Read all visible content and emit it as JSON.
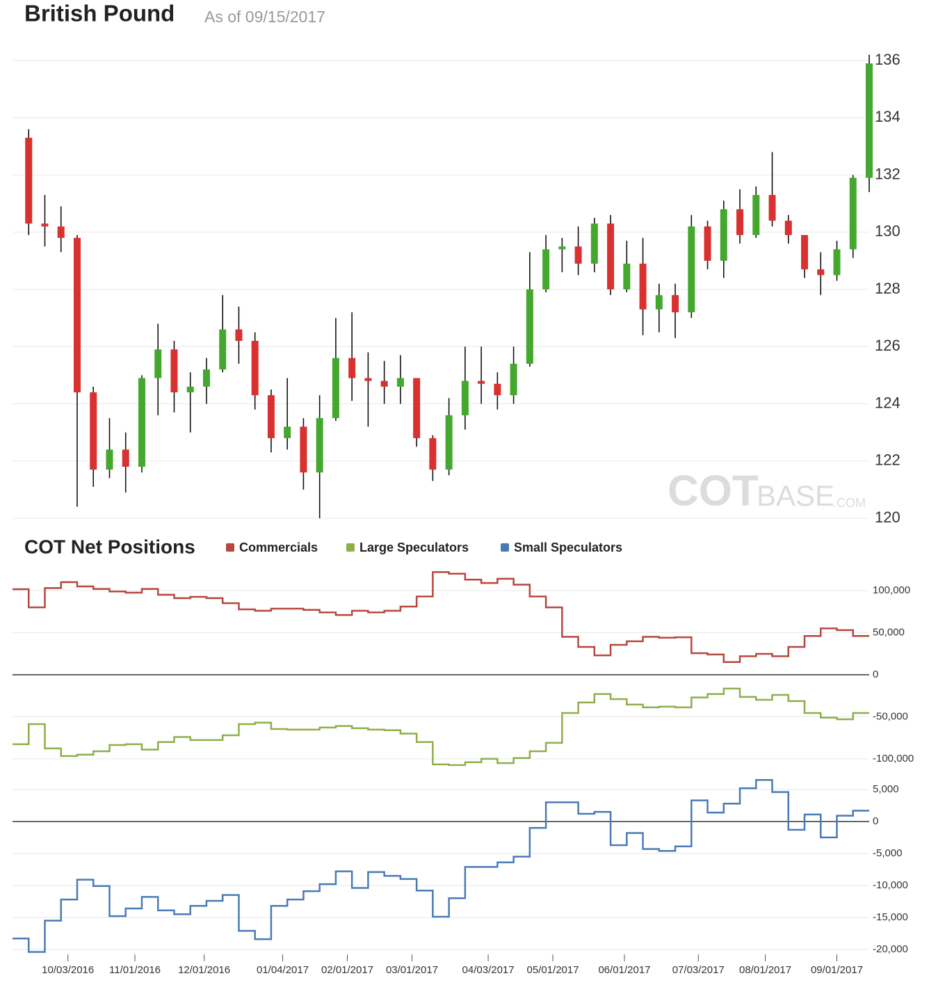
{
  "chart_data": [
    {
      "type": "candlestick",
      "title": "British Pound",
      "subtitle": "As of 09/15/2017",
      "watermark": [
        "COT",
        "BASE",
        ".COM"
      ],
      "x": [
        "09/16/2016",
        "09/23/2016",
        "09/30/2016",
        "10/07/2016",
        "10/14/2016",
        "10/21/2016",
        "10/28/2016",
        "11/04/2016",
        "11/11/2016",
        "11/18/2016",
        "11/25/2016",
        "12/02/2016",
        "12/09/2016",
        "12/16/2016",
        "12/23/2016",
        "12/30/2016",
        "01/06/2017",
        "01/13/2017",
        "01/20/2017",
        "01/27/2017",
        "02/03/2017",
        "02/10/2017",
        "02/17/2017",
        "02/24/2017",
        "03/03/2017",
        "03/10/2017",
        "03/17/2017",
        "03/24/2017",
        "03/31/2017",
        "04/07/2017",
        "04/14/2017",
        "04/21/2017",
        "04/28/2017",
        "05/05/2017",
        "05/12/2017",
        "05/19/2017",
        "05/26/2017",
        "06/02/2017",
        "06/09/2017",
        "06/16/2017",
        "06/23/2017",
        "06/30/2017",
        "07/07/2017",
        "07/14/2017",
        "07/21/2017",
        "07/28/2017",
        "08/04/2017",
        "08/11/2017",
        "08/18/2017",
        "08/25/2017",
        "09/01/2017",
        "09/08/2017",
        "09/15/2017"
      ],
      "open": [
        133.3,
        130.3,
        130.2,
        129.8,
        124.4,
        121.7,
        122.4,
        121.8,
        124.9,
        125.9,
        124.4,
        124.6,
        125.2,
        126.6,
        126.2,
        124.3,
        122.8,
        123.2,
        121.6,
        123.5,
        125.6,
        124.9,
        124.8,
        124.6,
        124.9,
        122.8,
        121.7,
        123.6,
        124.8,
        124.7,
        124.3,
        125.4,
        128.0,
        129.4,
        129.5,
        128.9,
        130.3,
        128.0,
        128.9,
        127.3,
        127.8,
        127.2,
        130.2,
        129.0,
        130.8,
        129.9,
        131.3,
        130.4,
        129.9,
        128.7,
        128.5,
        129.4,
        131.9
      ],
      "high": [
        133.6,
        131.3,
        130.9,
        129.9,
        124.6,
        123.5,
        123.0,
        125.0,
        126.8,
        126.2,
        125.1,
        125.6,
        127.8,
        127.4,
        126.5,
        124.5,
        124.9,
        123.5,
        124.3,
        127.0,
        127.2,
        125.8,
        125.5,
        125.7,
        124.9,
        122.9,
        124.2,
        126.0,
        126.0,
        125.1,
        126.0,
        129.3,
        129.9,
        129.8,
        130.2,
        130.5,
        130.6,
        129.7,
        129.8,
        128.2,
        128.2,
        130.6,
        130.4,
        131.1,
        131.5,
        131.6,
        132.8,
        130.6,
        129.9,
        129.3,
        129.7,
        132.0,
        136.2
      ],
      "low": [
        129.9,
        129.5,
        129.3,
        120.4,
        121.1,
        121.4,
        120.9,
        121.6,
        123.6,
        123.7,
        123.0,
        124.0,
        125.1,
        125.4,
        123.8,
        122.3,
        122.4,
        121.0,
        120.0,
        123.4,
        124.1,
        123.2,
        124.0,
        124.0,
        122.5,
        121.3,
        121.5,
        123.1,
        124.0,
        123.8,
        124.0,
        125.3,
        127.9,
        128.6,
        128.5,
        128.6,
        127.8,
        127.9,
        126.4,
        126.5,
        126.3,
        127.0,
        128.7,
        128.4,
        129.6,
        129.8,
        130.2,
        129.6,
        128.4,
        127.8,
        128.3,
        129.1,
        131.4
      ],
      "close": [
        130.3,
        130.2,
        129.8,
        124.4,
        121.7,
        122.4,
        121.8,
        124.9,
        125.9,
        124.4,
        124.6,
        125.2,
        126.6,
        126.2,
        124.3,
        122.8,
        123.2,
        121.6,
        123.5,
        125.6,
        124.9,
        124.8,
        124.6,
        124.9,
        122.8,
        121.7,
        123.6,
        124.8,
        124.7,
        124.3,
        125.4,
        128.0,
        129.4,
        129.5,
        128.9,
        130.3,
        128.0,
        128.9,
        127.3,
        127.8,
        127.2,
        130.2,
        129.0,
        130.8,
        129.9,
        131.3,
        130.4,
        129.9,
        128.7,
        128.5,
        129.4,
        131.9,
        135.9
      ],
      "up_color": "#45a82e",
      "down_color": "#d93030",
      "wick_color": "#111111",
      "xlim": [
        "09/09/2016",
        "09/15/2017"
      ],
      "ylim": [
        120,
        136
      ],
      "yticks": [
        120,
        122,
        124,
        126,
        128,
        130,
        132,
        134,
        136
      ],
      "grid": true
    },
    {
      "type": "line",
      "title": "COT Net Positions",
      "step": true,
      "zero_line": true,
      "grid": true,
      "x": [
        "09/09/2016",
        "09/16/2016",
        "09/23/2016",
        "09/30/2016",
        "10/07/2016",
        "10/14/2016",
        "10/21/2016",
        "10/28/2016",
        "11/04/2016",
        "11/11/2016",
        "11/18/2016",
        "11/25/2016",
        "12/02/2016",
        "12/09/2016",
        "12/16/2016",
        "12/23/2016",
        "12/30/2016",
        "01/06/2017",
        "01/13/2017",
        "01/20/2017",
        "01/27/2017",
        "02/03/2017",
        "02/10/2017",
        "02/17/2017",
        "02/24/2017",
        "03/03/2017",
        "03/10/2017",
        "03/17/2017",
        "03/24/2017",
        "03/31/2017",
        "04/07/2017",
        "04/14/2017",
        "04/21/2017",
        "04/28/2017",
        "05/05/2017",
        "05/12/2017",
        "05/19/2017",
        "05/26/2017",
        "06/02/2017",
        "06/09/2017",
        "06/16/2017",
        "06/23/2017",
        "06/30/2017",
        "07/07/2017",
        "07/14/2017",
        "07/21/2017",
        "07/28/2017",
        "08/04/2017",
        "08/11/2017",
        "08/18/2017",
        "08/25/2017",
        "09/01/2017",
        "09/08/2017",
        "09/15/2017"
      ],
      "series": [
        {
          "name": "Commercials",
          "color": "#b5473f",
          "values": [
            101600,
            80000,
            103000,
            110000,
            105000,
            102000,
            99000,
            97500,
            102000,
            95000,
            91000,
            92500,
            91000,
            85000,
            77700,
            76000,
            78500,
            78500,
            77000,
            74000,
            71000,
            76000,
            74000,
            76000,
            81000,
            93000,
            122000,
            120000,
            113000,
            109000,
            114000,
            107000,
            93000,
            80000,
            45000,
            33000,
            23000,
            35500,
            39700,
            45000,
            44000,
            44500,
            25600,
            24000,
            15000,
            22000,
            24800,
            22000,
            33000,
            46000,
            55000,
            53000,
            46000,
            46000
          ]
        },
        {
          "name": "Large Speculators",
          "color": "#8fae4a",
          "values": [
            -82600,
            -58700,
            -87600,
            -96700,
            -95000,
            -91000,
            -83500,
            -82600,
            -89000,
            -80000,
            -74000,
            -77700,
            -77700,
            -72000,
            -58700,
            -57000,
            -64500,
            -65300,
            -65300,
            -62800,
            -61000,
            -63600,
            -65300,
            -66000,
            -70000,
            -80000,
            -106600,
            -107400,
            -104000,
            -100000,
            -105000,
            -99000,
            -91000,
            -81000,
            -45500,
            -33000,
            -23000,
            -29000,
            -35500,
            -38800,
            -38000,
            -38800,
            -27000,
            -23000,
            -16500,
            -26400,
            -29800,
            -24000,
            -31400,
            -45500,
            -51000,
            -53000,
            -45500,
            -45500
          ]
        }
      ],
      "xlim": [
        "09/09/2016",
        "09/15/2017"
      ],
      "ylim": [
        -110000,
        130000
      ],
      "yticks": [
        {
          "value": -100000,
          "label": "-100,000"
        },
        {
          "value": -50000,
          "label": "-50,000"
        },
        0,
        {
          "value": 50000,
          "label": "50,000"
        },
        {
          "value": 100000,
          "label": "100,000"
        }
      ]
    },
    {
      "type": "line",
      "step": true,
      "zero_line": true,
      "grid": true,
      "x": [
        "09/09/2016",
        "09/16/2016",
        "09/23/2016",
        "09/30/2016",
        "10/07/2016",
        "10/14/2016",
        "10/21/2016",
        "10/28/2016",
        "11/04/2016",
        "11/11/2016",
        "11/18/2016",
        "11/25/2016",
        "12/02/2016",
        "12/09/2016",
        "12/16/2016",
        "12/23/2016",
        "12/30/2016",
        "01/06/2017",
        "01/13/2017",
        "01/20/2017",
        "01/27/2017",
        "02/03/2017",
        "02/10/2017",
        "02/17/2017",
        "02/24/2017",
        "03/03/2017",
        "03/10/2017",
        "03/17/2017",
        "03/24/2017",
        "03/31/2017",
        "04/07/2017",
        "04/14/2017",
        "04/21/2017",
        "04/28/2017",
        "05/05/2017",
        "05/12/2017",
        "05/19/2017",
        "05/26/2017",
        "06/02/2017",
        "06/09/2017",
        "06/16/2017",
        "06/23/2017",
        "06/30/2017",
        "07/07/2017",
        "07/14/2017",
        "07/21/2017",
        "07/28/2017",
        "08/04/2017",
        "08/11/2017",
        "08/18/2017",
        "08/25/2017",
        "09/01/2017",
        "09/08/2017",
        "09/15/2017"
      ],
      "series": [
        {
          "name": "Small Speculators",
          "color": "#4a7ab5",
          "values": [
            -18300,
            -20400,
            -15500,
            -12200,
            -9100,
            -10100,
            -14800,
            -13600,
            -11800,
            -13900,
            -14500,
            -13200,
            -12400,
            -11500,
            -17100,
            -18400,
            -13200,
            -12200,
            -10900,
            -9800,
            -7800,
            -10400,
            -7900,
            -8500,
            -9000,
            -10800,
            -14900,
            -12000,
            -7100,
            -7100,
            -6400,
            -5500,
            -1000,
            3000,
            3000,
            1200,
            1500,
            -3700,
            -1800,
            -4300,
            -4600,
            -3900,
            3300,
            1400,
            2800,
            5200,
            6500,
            4600,
            -1300,
            1100,
            -2500,
            900,
            1700,
            1700
          ]
        }
      ],
      "xlim": [
        "09/09/2016",
        "09/15/2017"
      ],
      "ylim": [
        -21000,
        7000
      ],
      "yticks": [
        {
          "value": -20000,
          "label": "-20,000"
        },
        {
          "value": -15000,
          "label": "-15,000"
        },
        {
          "value": -10000,
          "label": "-10,000"
        },
        {
          "value": -5000,
          "label": "-5,000"
        },
        0,
        {
          "value": 5000,
          "label": "5,000"
        }
      ],
      "xticks": [
        "10/03/2016",
        "11/01/2016",
        "12/01/2016",
        "01/04/2017",
        "02/01/2017",
        "03/01/2017",
        "04/03/2017",
        "05/01/2017",
        "06/01/2017",
        "07/03/2017",
        "08/01/2017",
        "09/01/2017"
      ]
    }
  ]
}
